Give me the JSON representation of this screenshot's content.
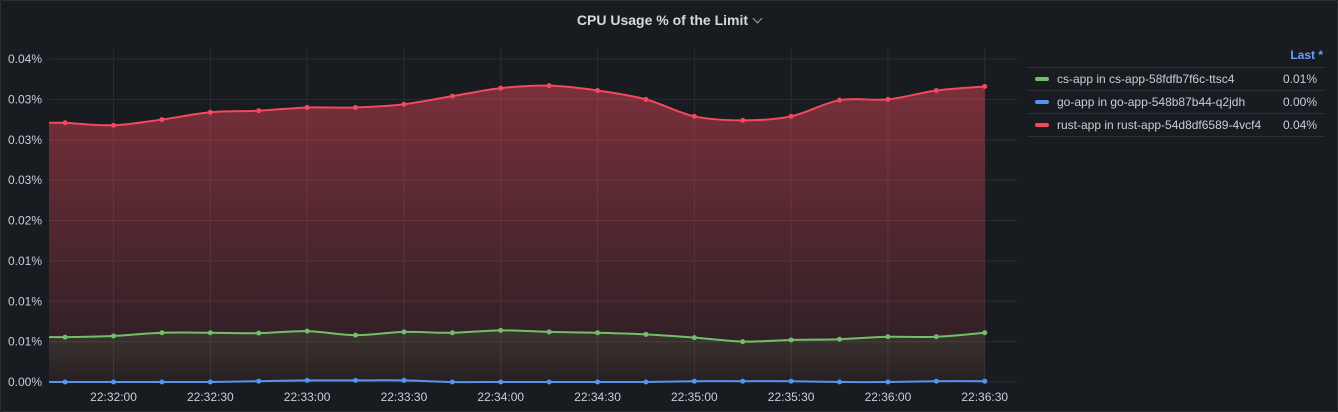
{
  "panel": {
    "title": "CPU Usage % of the Limit"
  },
  "legend": {
    "column_header": "Last *",
    "items": [
      {
        "name": "cs-app in cs-app-58fdfb7f6c-ttsc4",
        "last": "0.01%",
        "color": "#73bf69"
      },
      {
        "name": "go-app in go-app-548b87b44-q2jdh",
        "last": "0.00%",
        "color": "#5794f2"
      },
      {
        "name": "rust-app in rust-app-54d8df6589-4vcf4",
        "last": "0.04%",
        "color": "#f2495c"
      }
    ]
  },
  "chart_data": {
    "type": "area",
    "title": "CPU Usage % of the Limit",
    "xlabel": "",
    "ylabel": "",
    "ylim": [
      0,
      0.04
    ],
    "y_tick_labels": [
      "0.00%",
      "0.01%",
      "0.01%",
      "0.01%",
      "0.02%",
      "0.03%",
      "0.03%",
      "0.03%",
      "0.04%"
    ],
    "x_tick_labels": [
      "22:32:00",
      "22:32:30",
      "22:33:00",
      "22:33:30",
      "22:34:00",
      "22:34:30",
      "22:35:00",
      "22:35:30",
      "22:36:00",
      "22:36:30"
    ],
    "x_range": [
      "22:31:40",
      "22:36:40"
    ],
    "grid": true,
    "legend_position": "right",
    "x": [
      "22:31:45",
      "22:32:00",
      "22:32:15",
      "22:32:30",
      "22:32:45",
      "22:33:00",
      "22:33:15",
      "22:33:30",
      "22:33:45",
      "22:34:00",
      "22:34:15",
      "22:34:30",
      "22:34:45",
      "22:35:00",
      "22:35:15",
      "22:35:30",
      "22:35:45",
      "22:36:00",
      "22:36:15",
      "22:36:30"
    ],
    "series": [
      {
        "name": "cs-app in cs-app-58fdfb7f6c-ttsc4",
        "color": "#73bf69",
        "values": [
          0.00555,
          0.0057,
          0.0061,
          0.0061,
          0.00605,
          0.0063,
          0.0058,
          0.0062,
          0.0061,
          0.0064,
          0.0062,
          0.0061,
          0.0059,
          0.0055,
          0.005,
          0.0052,
          0.0053,
          0.0056,
          0.0056,
          0.0061
        ]
      },
      {
        "name": "go-app in go-app-548b87b44-q2jdh",
        "color": "#5794f2",
        "values": [
          0.0,
          0.0,
          0.0,
          0.0,
          0.0001,
          0.0002,
          0.0002,
          0.0002,
          0.0,
          0.0,
          0.0,
          0.0,
          0.0,
          0.0001,
          0.0001,
          0.0001,
          0.0,
          0.0,
          0.0001,
          0.0001
        ]
      },
      {
        "name": "rust-app in rust-app-54d8df6589-4vcf4",
        "color": "#f2495c",
        "values": [
          0.0321,
          0.0318,
          0.0325,
          0.0334,
          0.0336,
          0.034,
          0.034,
          0.0344,
          0.0354,
          0.0364,
          0.0367,
          0.0361,
          0.035,
          0.0329,
          0.0324,
          0.0329,
          0.0349,
          0.035,
          0.0361,
          0.0366
        ]
      }
    ]
  }
}
